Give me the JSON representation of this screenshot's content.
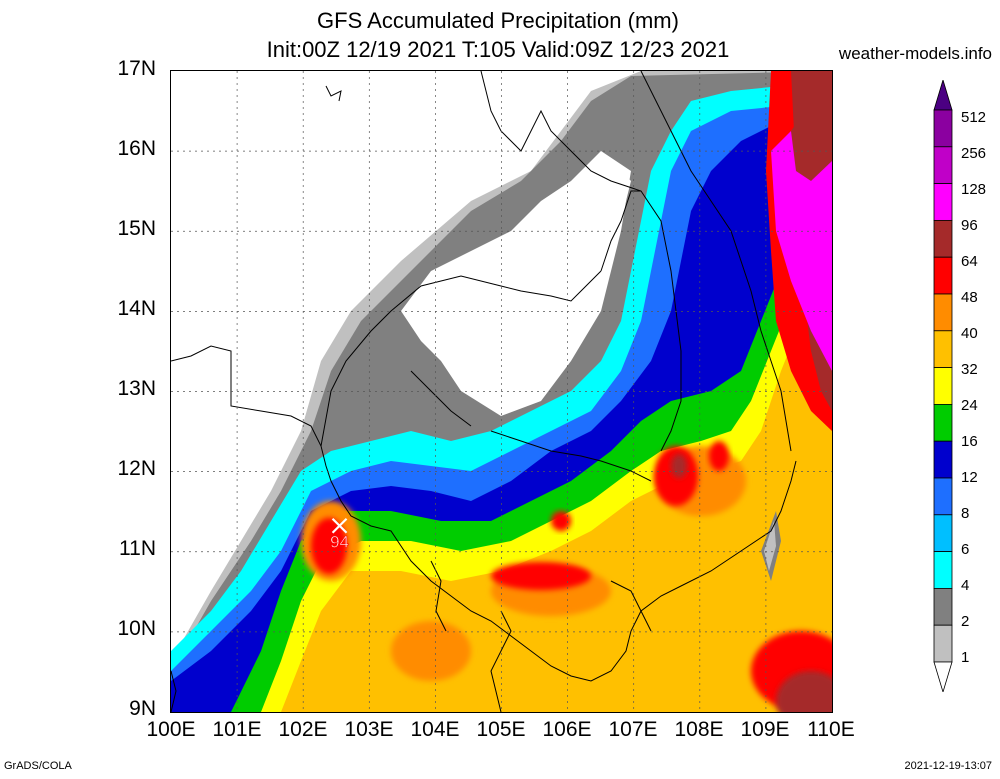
{
  "title": {
    "line1": "GFS Accumulated Precipitation (mm)",
    "line2": "Init:00Z 12/19 2021 T:105 Valid:09Z 12/23 2021"
  },
  "site": "weather-models.info",
  "footer": {
    "left": "GrADS/COLA",
    "right": "2021-12-19-13:07"
  },
  "axes": {
    "lat_labels": [
      "17N",
      "16N",
      "15N",
      "14N",
      "13N",
      "12N",
      "11N",
      "10N",
      "9N"
    ],
    "lon_labels": [
      "100E",
      "101E",
      "102E",
      "103E",
      "104E",
      "105E",
      "106E",
      "107E",
      "108E",
      "109E",
      "110E"
    ],
    "lat_range": [
      9,
      17
    ],
    "lon_range": [
      100,
      110
    ]
  },
  "colorbar": {
    "levels": [
      "512",
      "256",
      "128",
      "96",
      "64",
      "48",
      "40",
      "32",
      "24",
      "16",
      "12",
      "8",
      "6",
      "4",
      "2",
      "1"
    ],
    "colors": [
      "#4b0082",
      "#8b00a0",
      "#c000c8",
      "#ff00ff",
      "#a52a2a",
      "#ff0000",
      "#ff8c00",
      "#ffc000",
      "#ffff00",
      "#00cc00",
      "#0000cd",
      "#1e6fff",
      "#00bfff",
      "#00ffff",
      "#808080",
      "#c0c0c0",
      "#ffffff"
    ]
  },
  "marker": {
    "label": "94",
    "lat": 11.15,
    "lon": 102.55
  }
}
